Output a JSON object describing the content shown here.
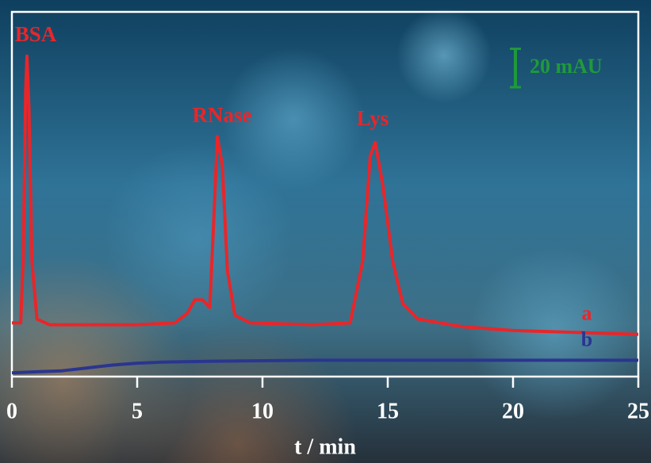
{
  "chart_data": {
    "type": "line",
    "xlabel": "t / min",
    "xlim": [
      0,
      25
    ],
    "xticks": [
      0,
      5,
      10,
      15,
      20,
      25
    ],
    "ylim": [
      0,
      190
    ],
    "annotations": [
      "BSA",
      "RNase",
      "Lys"
    ],
    "scale_bar": {
      "value": 20,
      "label": "20 mAU",
      "color": "#1f9a3a"
    },
    "series": [
      {
        "name": "a",
        "color": "#e8262a",
        "x": [
          0,
          0.35,
          0.45,
          0.55,
          0.6,
          0.68,
          0.8,
          1.0,
          1.5,
          5,
          6.5,
          7.0,
          7.3,
          7.6,
          7.9,
          8.05,
          8.2,
          8.4,
          8.6,
          8.9,
          9.5,
          12,
          13.5,
          14.0,
          14.3,
          14.5,
          14.8,
          15.2,
          15.6,
          16.2,
          18,
          20,
          25
        ],
        "values": [
          28,
          28,
          60,
          150,
          167,
          140,
          60,
          30,
          27,
          27,
          28,
          33,
          40,
          40,
          36,
          80,
          125,
          110,
          55,
          32,
          28,
          27,
          28,
          60,
          115,
          122,
          100,
          60,
          38,
          30,
          26,
          24,
          22
        ]
      },
      {
        "name": "b",
        "color": "#2a3590",
        "x": [
          0,
          1,
          2,
          3,
          4,
          5,
          6,
          8,
          12,
          25
        ],
        "values": [
          2,
          2.5,
          3,
          4.5,
          6,
          7,
          7.5,
          8,
          8.5,
          8.5
        ]
      }
    ]
  }
}
